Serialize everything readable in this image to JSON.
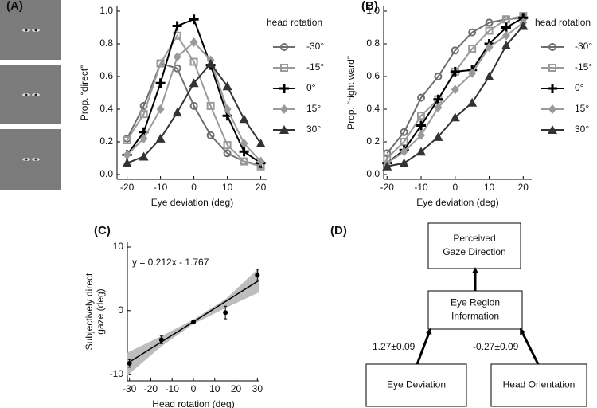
{
  "chart_data": [
    {
      "type": "line",
      "panel": "(A)",
      "xlabel": "Eye deviation (deg)",
      "ylabel": "Prop. “direct”",
      "x": [
        -20,
        -15,
        -10,
        -5,
        0,
        5,
        10,
        15,
        20
      ],
      "xlim": [
        -23,
        22
      ],
      "xticks": [
        -20,
        -10,
        0,
        10,
        20
      ],
      "ylim": [
        0,
        1
      ],
      "yticks": [
        {
          "value": 0,
          "label": "0.0"
        },
        0.2,
        0.4,
        0.6,
        0.8,
        {
          "value": 1,
          "label": "1.0"
        }
      ],
      "legend_title": "head rotation",
      "series": [
        {
          "name": "-30°",
          "color": "#6e6e6e",
          "marker": "circle",
          "values": [
            0.22,
            0.42,
            0.68,
            0.65,
            0.42,
            0.24,
            0.13,
            0.08,
            0.06
          ]
        },
        {
          "name": "-15°",
          "color": "#9a9a9a",
          "marker": "square",
          "values": [
            0.21,
            0.37,
            0.68,
            0.85,
            0.69,
            0.42,
            0.18,
            0.08,
            0.05
          ]
        },
        {
          "name": "0°",
          "color": "#000000",
          "marker": "plus",
          "values": [
            0.12,
            0.26,
            0.56,
            0.91,
            0.95,
            0.67,
            0.36,
            0.14,
            0.07
          ]
        },
        {
          "name": "15°",
          "color": "#9a9a9a",
          "marker": "diamond",
          "values": [
            0.12,
            0.22,
            0.4,
            0.72,
            0.81,
            0.7,
            0.4,
            0.19,
            0.08
          ]
        },
        {
          "name": "30°",
          "color": "#333333",
          "marker": "triangle",
          "values": [
            0.07,
            0.11,
            0.22,
            0.38,
            0.56,
            0.68,
            0.54,
            0.34,
            0.19
          ]
        }
      ]
    },
    {
      "type": "line",
      "panel": "(B)",
      "xlabel": "Eye deviation (deg)",
      "ylabel": "Prop. “right ward”",
      "x": [
        -20,
        -15,
        -10,
        -5,
        0,
        5,
        10,
        15,
        20
      ],
      "xlim": [
        -21,
        22.5
      ],
      "xticks": [
        -20,
        -10,
        0,
        10,
        20
      ],
      "ylim": [
        0,
        1
      ],
      "yticks": [
        {
          "value": 0,
          "label": "0.0"
        },
        0.2,
        0.4,
        0.6,
        0.8,
        {
          "value": 1,
          "label": "1.0"
        }
      ],
      "legend_title": "head rotation",
      "series": [
        {
          "name": "-30°",
          "color": "#6e6e6e",
          "marker": "circle",
          "values": [
            0.13,
            0.26,
            0.47,
            0.6,
            0.76,
            0.87,
            0.93,
            0.95,
            0.96
          ]
        },
        {
          "name": "-15°",
          "color": "#9a9a9a",
          "marker": "square",
          "values": [
            0.1,
            0.2,
            0.36,
            0.46,
            0.63,
            0.77,
            0.88,
            0.95,
            0.97
          ]
        },
        {
          "name": "0°",
          "color": "#000000",
          "marker": "plus",
          "values": [
            0.07,
            0.15,
            0.3,
            0.46,
            0.63,
            0.64,
            0.8,
            0.9,
            0.96
          ]
        },
        {
          "name": "15°",
          "color": "#9a9a9a",
          "marker": "diamond",
          "values": [
            0.07,
            0.14,
            0.24,
            0.41,
            0.52,
            0.62,
            0.78,
            0.85,
            0.93
          ]
        },
        {
          "name": "30°",
          "color": "#333333",
          "marker": "triangle",
          "values": [
            0.05,
            0.07,
            0.14,
            0.23,
            0.35,
            0.44,
            0.6,
            0.79,
            0.91
          ]
        }
      ]
    },
    {
      "type": "scatter",
      "panel": "(C)",
      "xlabel": "Head rotation (deg)",
      "ylabel": [
        "Subjectively direct",
        "gaze (deg)"
      ],
      "annotation": "y = 0.212x - 1.767",
      "x": [
        -30,
        -15,
        0,
        15,
        30
      ],
      "values": [
        -8.3,
        -4.6,
        -1.8,
        -0.3,
        5.6
      ],
      "errors": [
        0.6,
        0.6,
        0.3,
        1.0,
        0.9
      ],
      "fit": {
        "x": [
          -31,
          31
        ],
        "values": [
          -8.3,
          4.8
        ]
      },
      "band": {
        "x": [
          -31,
          -15,
          0,
          15,
          31
        ],
        "lower": [
          -10.2,
          -5.6,
          -2.1,
          0.4,
          2.9
        ],
        "upper": [
          -6.6,
          -4.0,
          -1.4,
          1.8,
          6.8
        ]
      },
      "xlim": [
        -31,
        31
      ],
      "xticks": [
        -30,
        -20,
        -10,
        0,
        10,
        20,
        30
      ],
      "ylim": [
        -10.3,
        10
      ],
      "yticks": [
        -10,
        0,
        10
      ]
    }
  ],
  "diagram": {
    "panel": "(D)",
    "nodes": [
      {
        "lines": [
          "Perceived",
          "Gaze Direction"
        ]
      },
      {
        "lines": [
          "Eye Region",
          "Information"
        ]
      },
      {
        "lines": [
          "Eye Deviation"
        ]
      },
      {
        "lines": [
          "Head Orientation"
        ]
      }
    ],
    "edges": [
      {
        "label": "1.27±0.09"
      },
      {
        "label": "-0.27±0.09"
      }
    ]
  }
}
